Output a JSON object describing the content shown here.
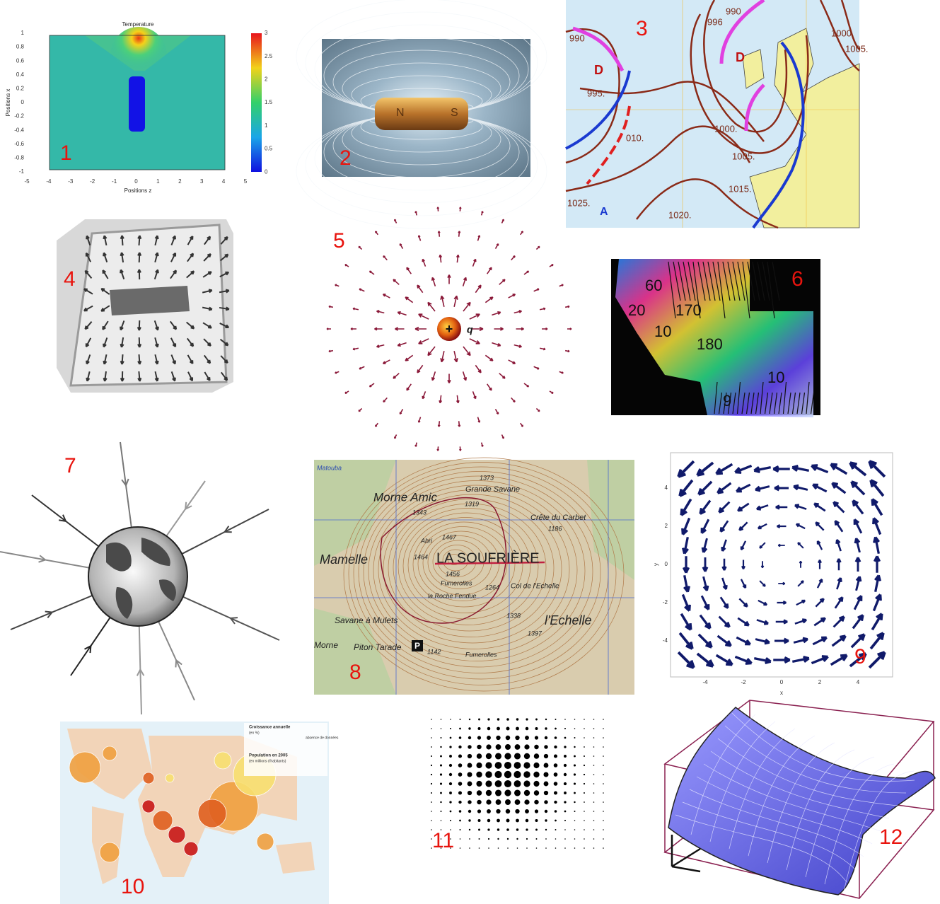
{
  "panels": [
    {
      "label": "1",
      "title": "Temperature",
      "x_label": "Positions z",
      "y_label": "Positions x",
      "x_ticks": [
        "-5",
        "-4",
        "-3",
        "-2",
        "-1",
        "0",
        "1",
        "2",
        "3",
        "4",
        "5"
      ],
      "y_ticks": [
        "1",
        "0.8",
        "0.6",
        "0.4",
        "0.2",
        "0",
        "-0.2",
        "-0.4",
        "-0.6",
        "-0.8",
        "-1"
      ],
      "colorbar_ticks": [
        "3",
        "2.5",
        "2",
        "1.5",
        "1",
        "0.5",
        "0"
      ]
    },
    {
      "label": "2",
      "texts": [
        "N",
        "S"
      ]
    },
    {
      "label": "3",
      "texts": [
        "D",
        "D",
        "A",
        "990",
        "995.",
        "996",
        "990",
        "1000.",
        "1005.",
        "010.",
        "1015.",
        "1020.",
        "1025.",
        "1000.",
        "1005."
      ]
    },
    {
      "label": "4"
    },
    {
      "label": "5",
      "charge": "q"
    },
    {
      "label": "6",
      "texts": [
        "60",
        "170",
        "180",
        "10",
        "20",
        "10",
        "9"
      ]
    },
    {
      "label": "7"
    },
    {
      "label": "8",
      "texts": [
        "Matouba",
        "Morne Amic",
        "Grande Savane",
        "1373",
        "1319",
        "1343",
        "Crête du Carbet",
        "1186",
        "Mamelle",
        "Abri",
        "1467",
        "1464",
        "LA SOUFRIÈRE",
        "1456",
        "Fumerolles",
        "1264",
        "Col de l'Echelle",
        "la Roche Fendue",
        "Savane à Mulets",
        "1338",
        "1397",
        "l'Echelle",
        "Piton Tarade",
        "1142",
        "Fumerolles",
        "Morne"
      ]
    },
    {
      "label": "9",
      "x_ticks": [
        "-4",
        "-2",
        "0",
        "2",
        "4"
      ],
      "y_ticks": [
        "4",
        "2",
        "0",
        "-2",
        "-4"
      ],
      "x_label": "x",
      "y_label": "y"
    },
    {
      "label": "10",
      "texts": [
        "Croissance annuelle",
        "(en %)",
        "Population en 2005",
        "(en millions d'habitants)",
        "absence de données"
      ]
    },
    {
      "label": "11"
    },
    {
      "label": "12"
    }
  ]
}
